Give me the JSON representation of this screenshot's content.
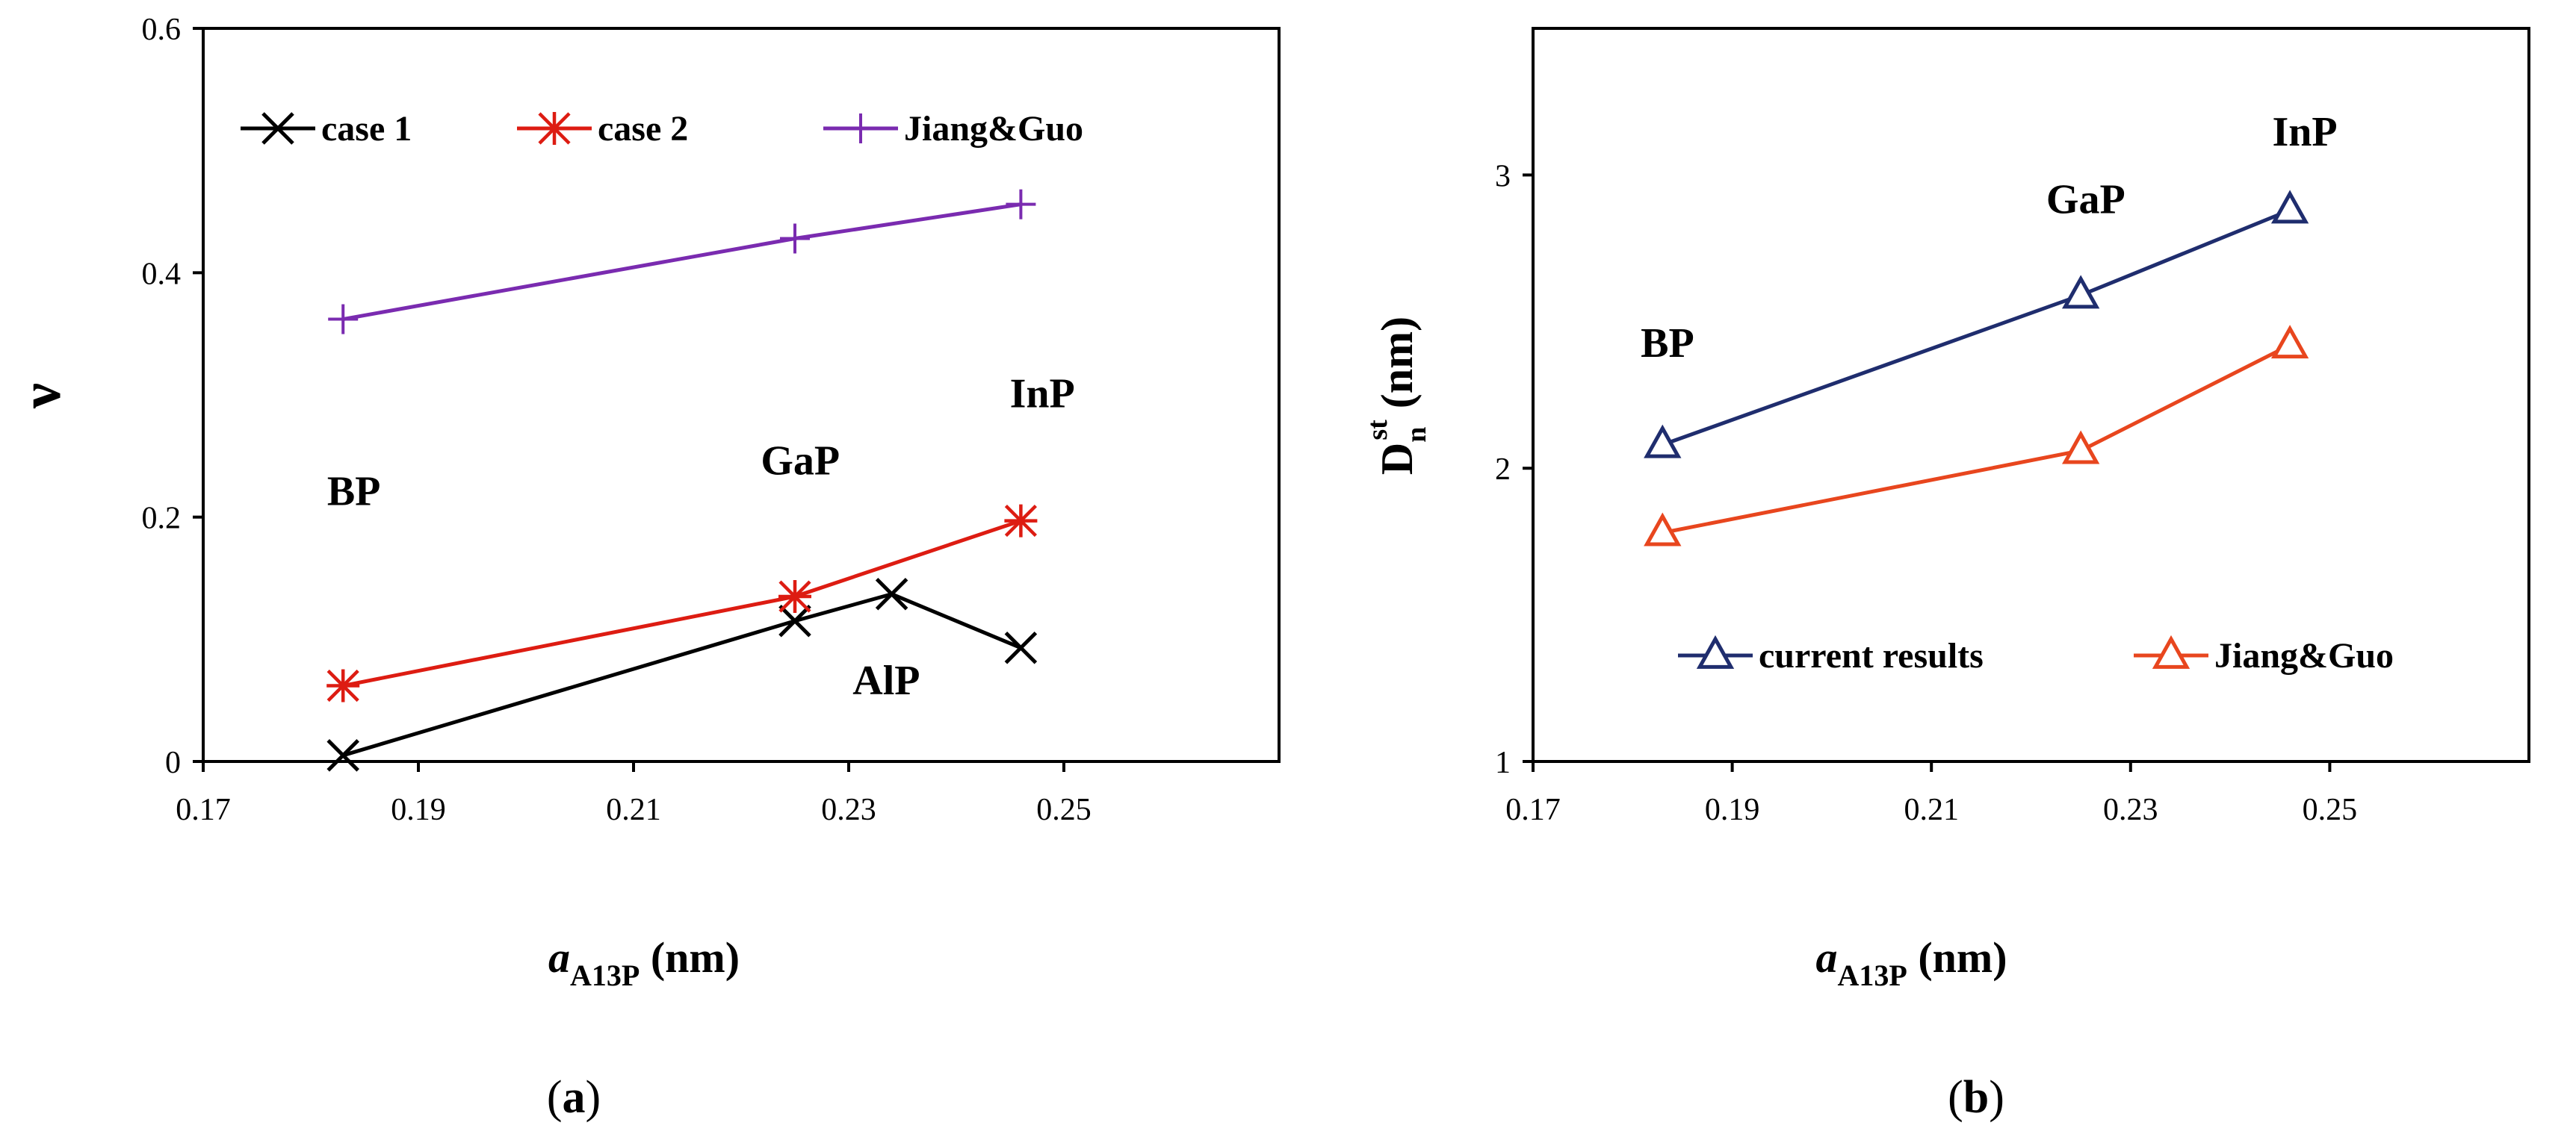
{
  "chart_data": [
    {
      "type": "line",
      "panel_label": "(a)",
      "ylabel": "ν",
      "xlabel": {
        "italic": "a",
        "sub": "A13P",
        "rest": " (nm)"
      },
      "xlim": [
        0.17,
        0.27
      ],
      "ylim": [
        0,
        0.6
      ],
      "xticks": [
        "0.17",
        "0.19",
        "0.21",
        "0.23",
        "0.25"
      ],
      "yticks": [
        "0",
        "0.2",
        "0.4",
        "0.6"
      ],
      "grid": false,
      "legend_position": "top",
      "series": [
        {
          "name": "case 1",
          "color": "#000000",
          "marker": "x",
          "x": [
            0.183,
            0.225,
            0.234,
            0.246
          ],
          "y": [
            0.005,
            0.115,
            0.137,
            0.093
          ]
        },
        {
          "name": "case 2",
          "color": "#dd1c12",
          "marker": "asterisk",
          "x": [
            0.183,
            0.225,
            0.246
          ],
          "y": [
            0.062,
            0.135,
            0.197
          ]
        },
        {
          "name": "Jiang&Guo",
          "color": "#7a2bb0",
          "marker": "plus",
          "x": [
            0.183,
            0.225,
            0.246
          ],
          "y": [
            0.362,
            0.428,
            0.456
          ]
        }
      ],
      "annotations": [
        {
          "text": "BP",
          "x": 0.184,
          "y": 0.21
        },
        {
          "text": "GaP",
          "x": 0.2255,
          "y": 0.235
        },
        {
          "text": "InP",
          "x": 0.248,
          "y": 0.29
        },
        {
          "text": "AlP",
          "x": 0.2335,
          "y": 0.055
        }
      ]
    },
    {
      "type": "line",
      "panel_label": "(b)",
      "ylabel": {
        "main": "D",
        "sub": "n",
        "sup": "st",
        "rest": " (nm)"
      },
      "xlabel": {
        "italic": "a",
        "sub": "A13P",
        "rest": " (nm)"
      },
      "xlim": [
        0.17,
        0.27
      ],
      "ylim": [
        1,
        3.5
      ],
      "xticks": [
        "0.17",
        "0.19",
        "0.21",
        "0.23",
        "0.25"
      ],
      "yticks": [
        "1",
        "2",
        "3"
      ],
      "grid": false,
      "legend_position": "bottom",
      "series": [
        {
          "name": "current results",
          "color": "#1f2d6e",
          "marker": "triangle-open",
          "x": [
            0.183,
            0.225,
            0.246
          ],
          "y": [
            2.08,
            2.59,
            2.88
          ]
        },
        {
          "name": "Jiang&Guo",
          "color": "#e8461e",
          "marker": "triangle-open",
          "x": [
            0.183,
            0.225,
            0.246
          ],
          "y": [
            1.78,
            2.06,
            2.42
          ]
        }
      ],
      "annotations": [
        {
          "text": "BP",
          "x": 0.1835,
          "y": 2.38
        },
        {
          "text": "GaP",
          "x": 0.2255,
          "y": 2.87
        },
        {
          "text": "InP",
          "x": 0.2475,
          "y": 3.1
        }
      ]
    }
  ]
}
